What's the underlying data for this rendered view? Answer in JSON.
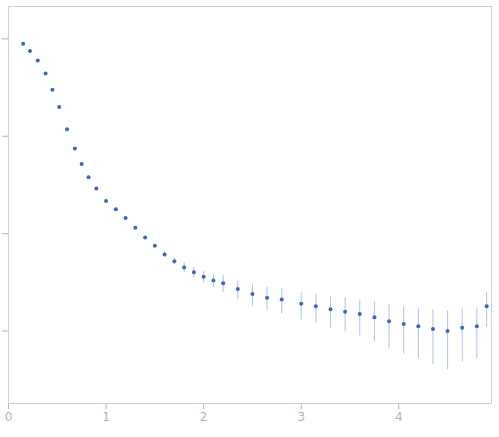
{
  "chart_data": {
    "type": "scatter",
    "x": [
      0.15,
      0.22,
      0.3,
      0.38,
      0.45,
      0.52,
      0.6,
      0.68,
      0.75,
      0.82,
      0.9,
      1.0,
      1.1,
      1.2,
      1.3,
      1.4,
      1.5,
      1.6,
      1.7,
      1.8,
      1.9,
      2.0,
      2.1,
      2.2,
      2.35,
      2.5,
      2.65,
      2.8,
      3.0,
      3.15,
      3.3,
      3.45,
      3.6,
      3.75,
      3.9,
      4.05,
      4.2,
      4.35,
      4.5,
      4.65,
      4.8,
      4.9
    ],
    "values": [
      0.89,
      0.75,
      0.6,
      0.44,
      0.3,
      0.2,
      0.118,
      0.075,
      0.052,
      0.038,
      0.029,
      0.0216,
      0.0178,
      0.0145,
      0.0115,
      0.0091,
      0.0075,
      0.0061,
      0.0052,
      0.0045,
      0.004,
      0.0036,
      0.0033,
      0.0031,
      0.0027,
      0.0024,
      0.0022,
      0.0021,
      0.0019,
      0.0018,
      0.00167,
      0.00158,
      0.00149,
      0.00138,
      0.00126,
      0.00118,
      0.00112,
      0.00105,
      0.001,
      0.00108,
      0.00112,
      0.00179
    ],
    "errors": [
      0.005,
      0.004,
      0.003,
      0.002,
      0.0015,
      0.001,
      0.0008,
      0.0005,
      0.0004,
      0.0003,
      0.0003,
      0.0003,
      0.0003,
      0.0003,
      0.0003,
      0.0003,
      0.0003,
      0.0004,
      0.0004,
      0.0005,
      0.0005,
      0.0005,
      0.0005,
      0.0006,
      0.0006,
      0.0006,
      0.0006,
      0.0006,
      0.0006,
      0.0006,
      0.0006,
      0.0006,
      0.0006,
      0.0006,
      0.0006,
      0.0006,
      0.0006,
      0.0006,
      0.0006,
      0.0006,
      0.0006,
      0.0007
    ],
    "color": "#3a66c4",
    "marker": "circle",
    "log": "y",
    "grid": false,
    "tick_labels": "x",
    "xlim": [
      0,
      4.95
    ],
    "xticks": [
      0,
      1,
      2,
      3,
      4
    ],
    "ylim": [
      0.00018,
      2.15
    ],
    "yticks": [
      0.001,
      0.01,
      0.1,
      1
    ]
  }
}
